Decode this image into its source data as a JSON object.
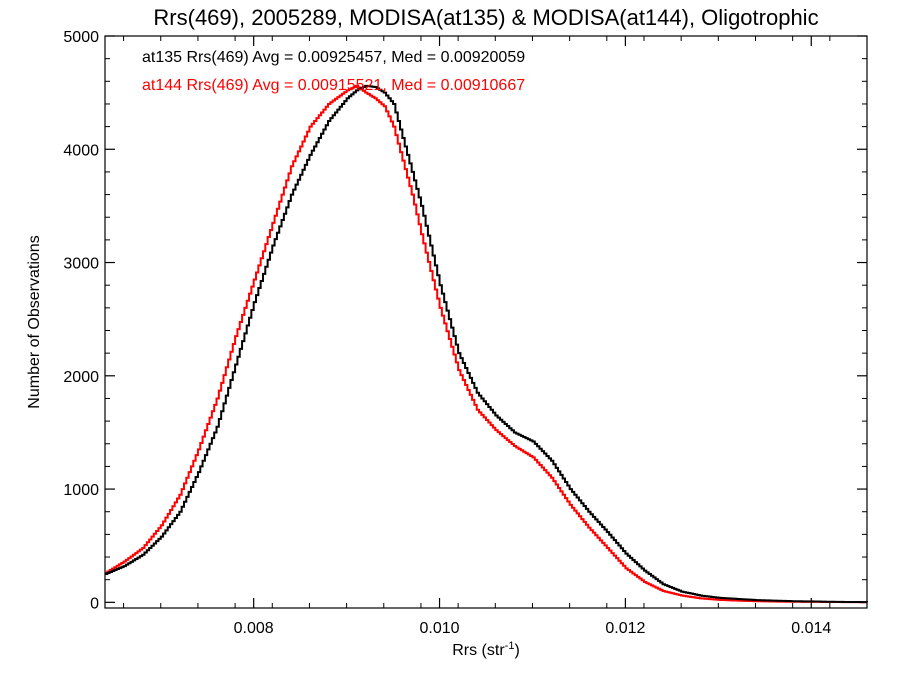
{
  "chart_data": {
    "type": "line",
    "style": "histogram-step",
    "title": "Rrs(469), 2005289, MODISA(at135) & MODISA(at144), Oligotrophic",
    "xlabel": "Rrs (str",
    "xlabel_sup": "-1",
    "xlabel_tail": ")",
    "ylabel": "Number of Observations",
    "xlim": [
      0.0064,
      0.0146
    ],
    "ylim": [
      -50,
      5000
    ],
    "x_ticks": [
      0.008,
      0.01,
      0.012,
      0.014
    ],
    "x_tick_labels": [
      "0.008",
      "0.010",
      "0.012",
      "0.014"
    ],
    "y_ticks": [
      0,
      1000,
      2000,
      3000,
      4000,
      5000
    ],
    "y_tick_labels": [
      "0",
      "1000",
      "2000",
      "3000",
      "4000",
      "5000"
    ],
    "grid": false,
    "annotations": [
      {
        "text": "at135 Rrs(469) Avg = 0.00925457, Med = 0.00920059",
        "color": "#000000"
      },
      {
        "text": "at144 Rrs(469) Avg = 0.00915521, Med = 0.00910667",
        "color": "#ff0000"
      }
    ],
    "series": [
      {
        "color": "#000000",
        "x": [
          0.0064,
          0.0066,
          0.0068,
          0.007,
          0.0072,
          0.0074,
          0.0076,
          0.0078,
          0.008,
          0.0082,
          0.0084,
          0.0086,
          0.0088,
          0.009,
          0.0091,
          0.0092,
          0.0093,
          0.0094,
          0.0095,
          0.0096,
          0.0097,
          0.0098,
          0.01,
          0.0102,
          0.0104,
          0.0106,
          0.0108,
          0.011,
          0.0112,
          0.0114,
          0.0116,
          0.0118,
          0.012,
          0.0122,
          0.0124,
          0.0126,
          0.0128,
          0.013,
          0.0132,
          0.0134,
          0.0136,
          0.0138,
          0.014,
          0.0142,
          0.0144,
          0.0146
        ],
        "y": [
          250,
          320,
          420,
          580,
          800,
          1150,
          1550,
          2100,
          2650,
          3150,
          3600,
          3950,
          4250,
          4450,
          4520,
          4560,
          4550,
          4500,
          4400,
          4100,
          3800,
          3500,
          2800,
          2200,
          1850,
          1650,
          1500,
          1420,
          1250,
          1000,
          800,
          620,
          430,
          280,
          160,
          95,
          60,
          40,
          30,
          20,
          15,
          10,
          8,
          5,
          3,
          2
        ]
      },
      {
        "color": "#ff0000",
        "x": [
          0.0064,
          0.0066,
          0.0068,
          0.007,
          0.0072,
          0.0074,
          0.0076,
          0.0078,
          0.008,
          0.0082,
          0.0084,
          0.0086,
          0.0088,
          0.009,
          0.0091,
          0.0092,
          0.0093,
          0.0094,
          0.0095,
          0.0096,
          0.0097,
          0.0098,
          0.01,
          0.0102,
          0.0104,
          0.0106,
          0.0108,
          0.011,
          0.0112,
          0.0114,
          0.0116,
          0.0118,
          0.012,
          0.0122,
          0.0124,
          0.0126,
          0.0128,
          0.013,
          0.0132,
          0.0134,
          0.0136,
          0.0138,
          0.014,
          0.0142,
          0.0144,
          0.0146
        ],
        "y": [
          260,
          360,
          480,
          680,
          950,
          1350,
          1800,
          2350,
          2850,
          3350,
          3850,
          4200,
          4400,
          4520,
          4560,
          4500,
          4450,
          4380,
          4200,
          3900,
          3600,
          3250,
          2600,
          2050,
          1700,
          1520,
          1380,
          1280,
          1100,
          860,
          660,
          480,
          300,
          180,
          100,
          60,
          35,
          22,
          15,
          10,
          7,
          5,
          4,
          3,
          2,
          1
        ]
      }
    ]
  }
}
